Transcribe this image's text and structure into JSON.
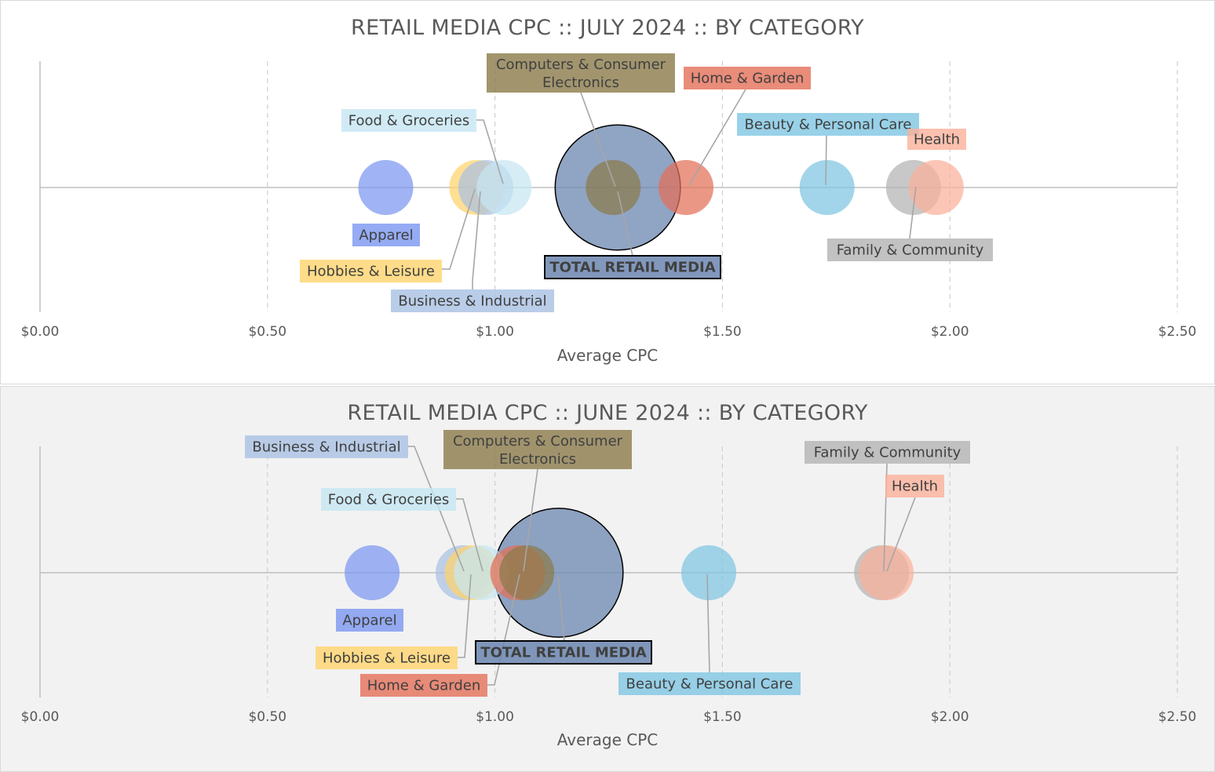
{
  "chart_data": [
    {
      "type": "scatter",
      "subtype": "bubble",
      "title": "RETAIL MEDIA CPC :: JULY 2024 :: BY CATEGORY",
      "xlabel": "Average CPC",
      "xlim": [
        0,
        2.5
      ],
      "xticks": [
        "$0.00",
        "$0.50",
        "$1.00",
        "$1.50",
        "$2.00",
        "$2.50"
      ],
      "background": "#ffffff",
      "series": [
        {
          "name": "Apparel",
          "x": 0.76,
          "size": 1,
          "color": "#7b96f0"
        },
        {
          "name": "Hobbies & Leisure",
          "x": 0.96,
          "size": 1,
          "color": "#ffd36b"
        },
        {
          "name": "Business & Industrial",
          "x": 0.98,
          "size": 1,
          "color": "#a9c0e2"
        },
        {
          "name": "Food & Groceries",
          "x": 1.02,
          "size": 1,
          "color": "#c6e6f3"
        },
        {
          "name": "TOTAL RETAIL MEDIA",
          "x": 1.27,
          "size": 5.2,
          "color": "#6b86b0"
        },
        {
          "name": "Computers & Consumer Electronics",
          "x": 1.26,
          "size": 1,
          "color": "#8b7a4a"
        },
        {
          "name": "Home & Garden",
          "x": 1.42,
          "size": 1,
          "color": "#e36f57"
        },
        {
          "name": "Beauty & Personal Care",
          "x": 1.73,
          "size": 1,
          "color": "#7ec5e2"
        },
        {
          "name": "Family & Community",
          "x": 1.92,
          "size": 1,
          "color": "#b3b3b3"
        },
        {
          "name": "Health",
          "x": 1.97,
          "size": 1,
          "color": "#fbb09a"
        }
      ]
    },
    {
      "type": "scatter",
      "subtype": "bubble",
      "title": "RETAIL MEDIA CPC :: JUNE 2024 :: BY CATEGORY",
      "xlabel": "Average CPC",
      "xlim": [
        0,
        2.5
      ],
      "xticks": [
        "$0.00",
        "$0.50",
        "$1.00",
        "$1.50",
        "$2.00",
        "$2.50"
      ],
      "background": "#f2f2f2",
      "series": [
        {
          "name": "Apparel",
          "x": 0.73,
          "size": 1,
          "color": "#7b96f0"
        },
        {
          "name": "Business & Industrial",
          "x": 0.93,
          "size": 1,
          "color": "#a9c0e2"
        },
        {
          "name": "Hobbies & Leisure",
          "x": 0.95,
          "size": 1,
          "color": "#ffd36b"
        },
        {
          "name": "Food & Groceries",
          "x": 0.97,
          "size": 1,
          "color": "#c6e6f3"
        },
        {
          "name": "Home & Garden",
          "x": 1.05,
          "size": 1,
          "color": "#e36f57"
        },
        {
          "name": "Computers & Consumer Electronics",
          "x": 1.07,
          "size": 1,
          "color": "#8b7a4a"
        },
        {
          "name": "TOTAL RETAIL MEDIA",
          "x": 1.14,
          "size": 5.5,
          "color": "#6b86b0"
        },
        {
          "name": "Beauty & Personal Care",
          "x": 1.47,
          "size": 1,
          "color": "#7ec5e2"
        },
        {
          "name": "Family & Community",
          "x": 1.85,
          "size": 1,
          "color": "#b3b3b3"
        },
        {
          "name": "Health",
          "x": 1.86,
          "size": 1,
          "color": "#fbb09a"
        }
      ]
    }
  ]
}
